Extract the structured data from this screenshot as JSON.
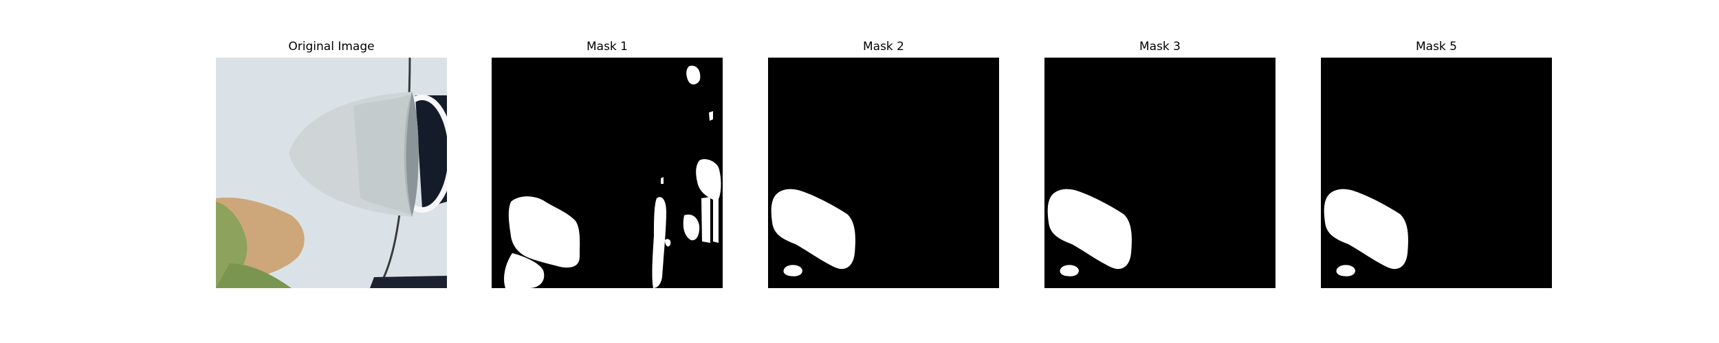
{
  "panels": [
    {
      "title": "Original Image"
    },
    {
      "title": "Mask 1"
    },
    {
      "title": "Mask 2"
    },
    {
      "title": "Mask 3"
    },
    {
      "title": "Mask 5"
    }
  ],
  "colors": {
    "mask_background": "#000000",
    "mask_foreground": "#ffffff",
    "page_background": "#ffffff",
    "car_body": "#d9e1e6",
    "mirror": "#cfd5d7",
    "leaf_green": "#8da25c",
    "leaf_tan": "#cda77a",
    "dark_interior": "#141c2a"
  }
}
